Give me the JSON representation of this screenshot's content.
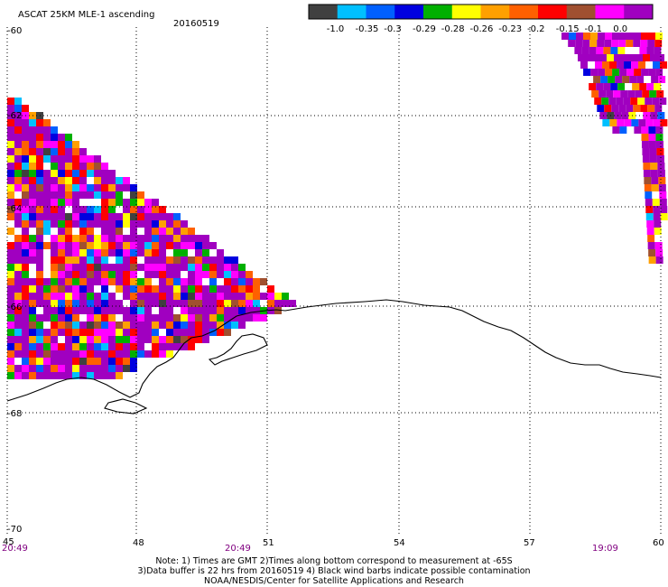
{
  "header": {
    "title": "ASCAT 25KM MLE-1 ascending",
    "date": "20160519"
  },
  "colorbar": {
    "labels": [
      "-1.0",
      "-0.35",
      "-0.3",
      "-0.29",
      "-0.28",
      "-0.26",
      "-0.23",
      "-0.2",
      "-0.15",
      "-0.1",
      "0.0"
    ],
    "colors": [
      "#404040",
      "#00c0ff",
      "#0060ff",
      "#0000e0",
      "#00b000",
      "#ffff00",
      "#ffa000",
      "#ff6000",
      "#ff0000",
      "#a05030",
      "#ff00ff",
      "#a000c0"
    ]
  },
  "map": {
    "lon_range": [
      45,
      60
    ],
    "lat_range": [
      -70,
      -60
    ],
    "lon_ticks": [
      "45",
      "48",
      "51",
      "54",
      "57",
      "60"
    ],
    "lat_ticks": [
      "-60",
      "-62",
      "-64",
      "-66",
      "-68",
      "-70"
    ],
    "times": [
      "20:49",
      "20:49",
      "19:09"
    ],
    "grid": true
  },
  "notes": {
    "line1": "Note: 1) Times are GMT 2)Times along bottom correspond to measurement at -65S",
    "line2": "3)Data buffer is 22 hrs from 20160519 4) Black wind barbs indicate possible contamination",
    "line3": "NOAA/NESDIS/Center for Satellite Applications and Research"
  }
}
